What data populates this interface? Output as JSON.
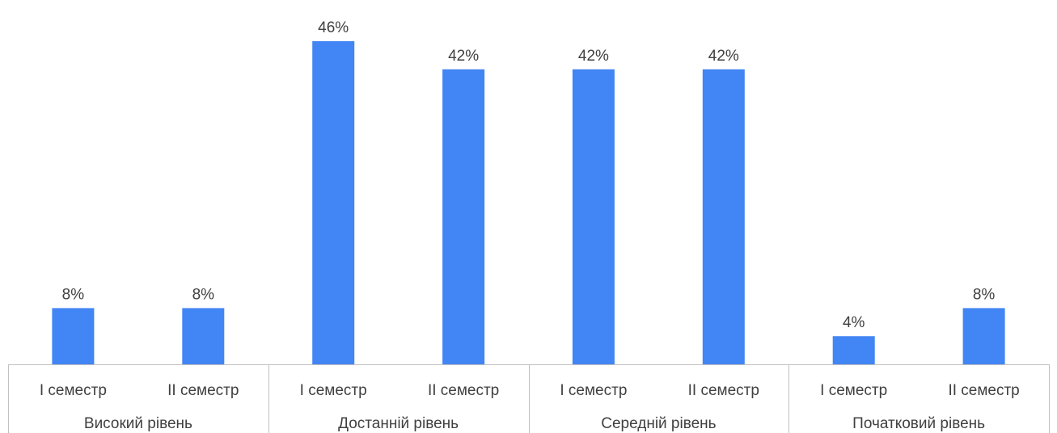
{
  "chart_data": {
    "type": "bar",
    "title": "",
    "xlabel": "",
    "ylabel": "",
    "ylim": [
      0,
      46
    ],
    "grid": false,
    "legend": "none",
    "bar_color": "#4285F4",
    "axis_color": "#C0C0C0",
    "text_color": "#404040",
    "groups": [
      {
        "label": "Високий рівень",
        "bars": [
          {
            "category": "І семестр",
            "value": 8,
            "label": "8%"
          },
          {
            "category": "ІІ семестр",
            "value": 8,
            "label": "8%"
          }
        ]
      },
      {
        "label": "Достанній рівень",
        "bars": [
          {
            "category": "І семестр",
            "value": 46,
            "label": "46%"
          },
          {
            "category": "ІІ семестр",
            "value": 42,
            "label": "42%"
          }
        ]
      },
      {
        "label": "Середній рівень",
        "bars": [
          {
            "category": "І семестр",
            "value": 42,
            "label": "42%"
          },
          {
            "category": "ІІ семестр",
            "value": 42,
            "label": "42%"
          }
        ]
      },
      {
        "label": "Початковий рівень",
        "bars": [
          {
            "category": "І семестр",
            "value": 4,
            "label": "4%"
          },
          {
            "category": "ІІ семестр",
            "value": 8,
            "label": "8%"
          }
        ]
      }
    ]
  }
}
